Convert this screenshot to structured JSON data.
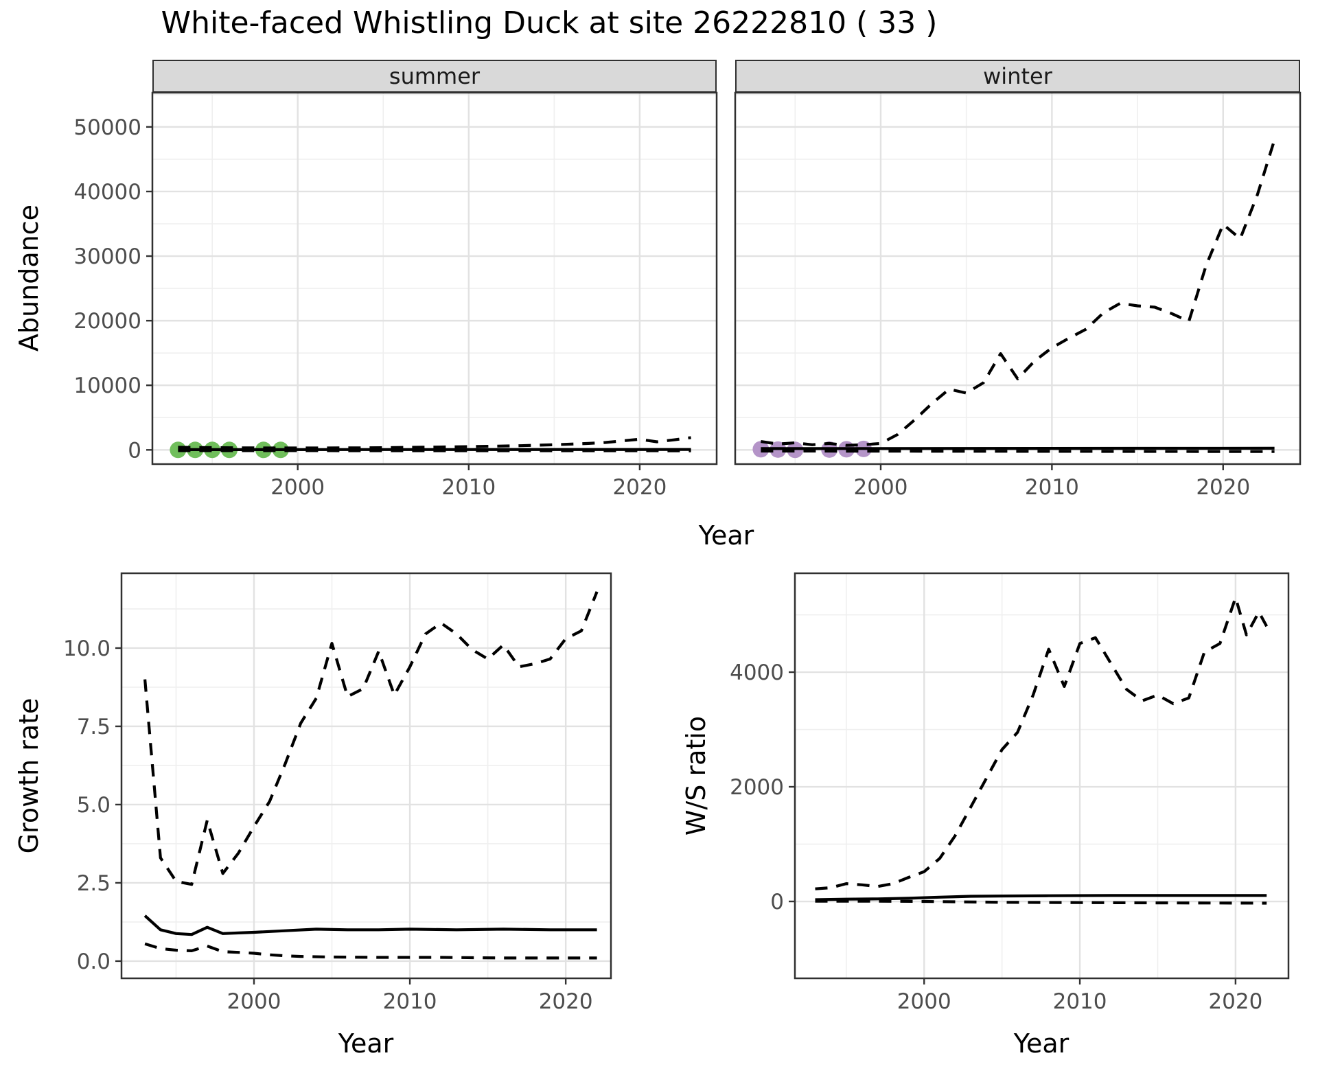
{
  "title": "White-faced Whistling Duck at site 26222810 ( 33 )",
  "facets": {
    "summer_label": "summer",
    "winter_label": "winter"
  },
  "axis_titles": {
    "abundance": "Abundance",
    "year_top": "Year",
    "growth": "Growth rate",
    "ws": "W/S ratio",
    "year_bottom_left": "Year",
    "year_bottom_right": "Year"
  },
  "colors": {
    "summer_point": "#70BE5B",
    "winter_point": "#B494C8",
    "line": "#000000",
    "grid_major": "#E2E2E2",
    "grid_minor": "#EFEFEF",
    "strip_bg": "#D9D9D9",
    "axis_text": "#4D4D4D",
    "panel_border": "#303030"
  },
  "chart_data": [
    {
      "type": "line",
      "name": "abundance-summer",
      "facet": "summer",
      "xlabel": "Year",
      "ylabel": "Abundance",
      "xlim": [
        1991.5,
        2024.5
      ],
      "ylim": [
        -2200,
        55300
      ],
      "xticks": {
        "major": [
          2000,
          2010,
          2020
        ],
        "labels": [
          "2000",
          "2010",
          "2020"
        ],
        "minor": [
          1995,
          2005,
          2015
        ]
      },
      "yticks": {
        "major": [
          0,
          10000,
          20000,
          30000,
          40000,
          50000
        ],
        "labels": [
          "0",
          "10000",
          "20000",
          "30000",
          "40000",
          "50000"
        ],
        "minor": [
          5000,
          15000,
          25000,
          35000,
          45000,
          55000
        ]
      },
      "points": {
        "color": "summer_point",
        "data": [
          [
            1993,
            0
          ],
          [
            1994,
            0
          ],
          [
            1995,
            0
          ],
          [
            1996,
            0
          ],
          [
            1998,
            0
          ],
          [
            1999,
            0
          ]
        ]
      },
      "series": [
        {
          "name": "upper_ci",
          "style": "dashed",
          "data": [
            [
              1993,
              400
            ],
            [
              1995,
              350
            ],
            [
              1998,
              300
            ],
            [
              2001,
              300
            ],
            [
              2004,
              320
            ],
            [
              2007,
              400
            ],
            [
              2010,
              500
            ],
            [
              2013,
              650
            ],
            [
              2015,
              800
            ],
            [
              2017,
              1000
            ],
            [
              2018,
              1150
            ],
            [
              2019,
              1400
            ],
            [
              2020,
              1650
            ],
            [
              2021,
              1250
            ],
            [
              2022,
              1550
            ],
            [
              2023,
              1900
            ]
          ]
        },
        {
          "name": "lower_ci",
          "style": "dashed",
          "data": [
            [
              1993,
              -120
            ],
            [
              2023,
              -140
            ]
          ]
        },
        {
          "name": "median",
          "style": "solid",
          "data": [
            [
              1993,
              40
            ],
            [
              2023,
              60
            ]
          ]
        }
      ]
    },
    {
      "type": "line",
      "name": "abundance-winter",
      "facet": "winter",
      "xlabel": "Year",
      "ylabel": "Abundance",
      "xlim": [
        1991.5,
        2024.5
      ],
      "ylim": [
        -2200,
        55300
      ],
      "xticks": {
        "major": [
          2000,
          2010,
          2020
        ],
        "labels": [
          "2000",
          "2010",
          "2020"
        ],
        "minor": [
          1995,
          2005,
          2015
        ]
      },
      "yticks": {
        "major": [
          0,
          10000,
          20000,
          30000,
          40000,
          50000
        ],
        "labels": [
          "0",
          "10000",
          "20000",
          "30000",
          "40000",
          "50000"
        ],
        "minor": [
          5000,
          15000,
          25000,
          35000,
          45000,
          55000
        ]
      },
      "points": {
        "color": "winter_point",
        "data": [
          [
            1993,
            100
          ],
          [
            1994,
            50
          ],
          [
            1995,
            0
          ],
          [
            1997,
            50
          ],
          [
            1998,
            100
          ],
          [
            1999,
            150
          ]
        ]
      },
      "series": [
        {
          "name": "upper_ci",
          "style": "dashed",
          "data": [
            [
              1993,
              1300
            ],
            [
              1994,
              900
            ],
            [
              1995,
              1100
            ],
            [
              1996,
              800
            ],
            [
              1997,
              1000
            ],
            [
              1998,
              700
            ],
            [
              1999,
              800
            ],
            [
              2000,
              1000
            ],
            [
              2001,
              2400
            ],
            [
              2002,
              4700
            ],
            [
              2003,
              7200
            ],
            [
              2004,
              9400
            ],
            [
              2005,
              8800
            ],
            [
              2006,
              10400
            ],
            [
              2007,
              14900
            ],
            [
              2008,
              11000
            ],
            [
              2009,
              13800
            ],
            [
              2010,
              15800
            ],
            [
              2011,
              17300
            ],
            [
              2012,
              18700
            ],
            [
              2013,
              21200
            ],
            [
              2014,
              22700
            ],
            [
              2015,
              22300
            ],
            [
              2016,
              22100
            ],
            [
              2017,
              21100
            ],
            [
              2018,
              19900
            ],
            [
              2019,
              28500
            ],
            [
              2020,
              34900
            ],
            [
              2021,
              32700
            ],
            [
              2022,
              39500
            ],
            [
              2023,
              48000
            ]
          ]
        },
        {
          "name": "lower_ci",
          "style": "dashed",
          "data": [
            [
              1993,
              -180
            ],
            [
              2023,
              -250
            ]
          ]
        },
        {
          "name": "median",
          "style": "solid",
          "data": [
            [
              1993,
              200
            ],
            [
              2023,
              250
            ]
          ]
        }
      ]
    },
    {
      "type": "line",
      "name": "growth-rate",
      "xlabel": "Year",
      "ylabel": "Growth rate",
      "xlim": [
        1991.5,
        2022.9
      ],
      "ylim": [
        -0.55,
        12.39
      ],
      "xticks": {
        "major": [
          2000,
          2010,
          2020
        ],
        "labels": [
          "2000",
          "2010",
          "2020"
        ],
        "minor": [
          1995,
          2005,
          2015
        ]
      },
      "yticks": {
        "major": [
          0,
          2.5,
          5,
          7.5,
          10
        ],
        "labels": [
          "0.0",
          "2.5",
          "5.0",
          "7.5",
          "10.0"
        ],
        "minor": [
          1.25,
          3.75,
          6.25,
          8.75,
          11.25
        ]
      },
      "series": [
        {
          "name": "upper_ci",
          "style": "dashed",
          "data": [
            [
              1993,
              9.0
            ],
            [
              1994,
              3.3
            ],
            [
              1995,
              2.55
            ],
            [
              1996,
              2.45
            ],
            [
              1997,
              4.5
            ],
            [
              1998,
              2.8
            ],
            [
              1999,
              3.45
            ],
            [
              2000,
              4.3
            ],
            [
              2001,
              5.1
            ],
            [
              2002,
              6.3
            ],
            [
              2003,
              7.6
            ],
            [
              2004,
              8.4
            ],
            [
              2005,
              10.15
            ],
            [
              2006,
              8.45
            ],
            [
              2007,
              8.7
            ],
            [
              2008,
              9.9
            ],
            [
              2009,
              8.5
            ],
            [
              2010,
              9.4
            ],
            [
              2011,
              10.45
            ],
            [
              2012,
              10.8
            ],
            [
              2013,
              10.45
            ],
            [
              2014,
              9.95
            ],
            [
              2015,
              9.65
            ],
            [
              2016,
              10.1
            ],
            [
              2017,
              9.4
            ],
            [
              2018,
              9.5
            ],
            [
              2019,
              9.65
            ],
            [
              2020,
              10.3
            ],
            [
              2021,
              10.55
            ],
            [
              2022,
              11.8
            ]
          ]
        },
        {
          "name": "lower_ci",
          "style": "dashed",
          "data": [
            [
              1993,
              0.55
            ],
            [
              1994,
              0.4
            ],
            [
              1995,
              0.35
            ],
            [
              1996,
              0.33
            ],
            [
              1997,
              0.48
            ],
            [
              1998,
              0.3
            ],
            [
              1999,
              0.28
            ],
            [
              2000,
              0.25
            ],
            [
              2001,
              0.2
            ],
            [
              2002,
              0.17
            ],
            [
              2003,
              0.15
            ],
            [
              2005,
              0.13
            ],
            [
              2008,
              0.12
            ],
            [
              2012,
              0.12
            ],
            [
              2016,
              0.1
            ],
            [
              2022,
              0.1
            ]
          ]
        },
        {
          "name": "median",
          "style": "solid",
          "data": [
            [
              1993,
              1.45
            ],
            [
              1994,
              1.0
            ],
            [
              1995,
              0.88
            ],
            [
              1996,
              0.85
            ],
            [
              1997,
              1.08
            ],
            [
              1998,
              0.88
            ],
            [
              1999,
              0.9
            ],
            [
              2000,
              0.92
            ],
            [
              2002,
              0.97
            ],
            [
              2004,
              1.02
            ],
            [
              2006,
              1.0
            ],
            [
              2008,
              1.0
            ],
            [
              2010,
              1.02
            ],
            [
              2013,
              1.0
            ],
            [
              2016,
              1.02
            ],
            [
              2019,
              1.0
            ],
            [
              2022,
              1.0
            ]
          ]
        }
      ]
    },
    {
      "type": "line",
      "name": "ws-ratio",
      "xlabel": "Year",
      "ylabel": "W/S ratio",
      "xlim": [
        1991.7,
        2023.4
      ],
      "ylim": [
        -1341,
        5725
      ],
      "xticks": {
        "major": [
          2000,
          2010,
          2020
        ],
        "labels": [
          "2000",
          "2010",
          "2020"
        ],
        "minor": [
          1995,
          2005,
          2015
        ]
      },
      "yticks": {
        "major": [
          0,
          2000,
          4000
        ],
        "labels": [
          "0",
          "2000",
          "4000"
        ],
        "minor": [
          1000,
          3000,
          5000
        ]
      },
      "series": [
        {
          "name": "upper_ci",
          "style": "dashed",
          "data": [
            [
              1993,
              220
            ],
            [
              1994,
              240
            ],
            [
              1995,
              310
            ],
            [
              1996,
              290
            ],
            [
              1997,
              260
            ],
            [
              1998,
              310
            ],
            [
              1999,
              420
            ],
            [
              2000,
              520
            ],
            [
              2001,
              750
            ],
            [
              2002,
              1150
            ],
            [
              2003,
              1650
            ],
            [
              2004,
              2150
            ],
            [
              2005,
              2650
            ],
            [
              2006,
              2950
            ],
            [
              2007,
              3600
            ],
            [
              2008,
              4400
            ],
            [
              2009,
              3750
            ],
            [
              2010,
              4500
            ],
            [
              2011,
              4600
            ],
            [
              2012,
              4150
            ],
            [
              2013,
              3700
            ],
            [
              2014,
              3500
            ],
            [
              2015,
              3600
            ],
            [
              2016,
              3450
            ],
            [
              2017,
              3550
            ],
            [
              2018,
              4350
            ],
            [
              2019,
              4500
            ],
            [
              2020,
              5300
            ],
            [
              2020.7,
              4650
            ],
            [
              2021.5,
              5050
            ],
            [
              2022,
              4800
            ]
          ]
        },
        {
          "name": "lower_ci",
          "style": "dashed",
          "data": [
            [
              1993,
              5
            ],
            [
              1997,
              5
            ],
            [
              2000,
              0
            ],
            [
              2005,
              -15
            ],
            [
              2010,
              -20
            ],
            [
              2015,
              -25
            ],
            [
              2022,
              -30
            ]
          ]
        },
        {
          "name": "median",
          "style": "solid",
          "data": [
            [
              1993,
              30
            ],
            [
              1995,
              40
            ],
            [
              1997,
              45
            ],
            [
              1999,
              55
            ],
            [
              2001,
              75
            ],
            [
              2003,
              90
            ],
            [
              2005,
              95
            ],
            [
              2008,
              100
            ],
            [
              2012,
              105
            ],
            [
              2016,
              105
            ],
            [
              2022,
              105
            ]
          ]
        }
      ]
    }
  ]
}
